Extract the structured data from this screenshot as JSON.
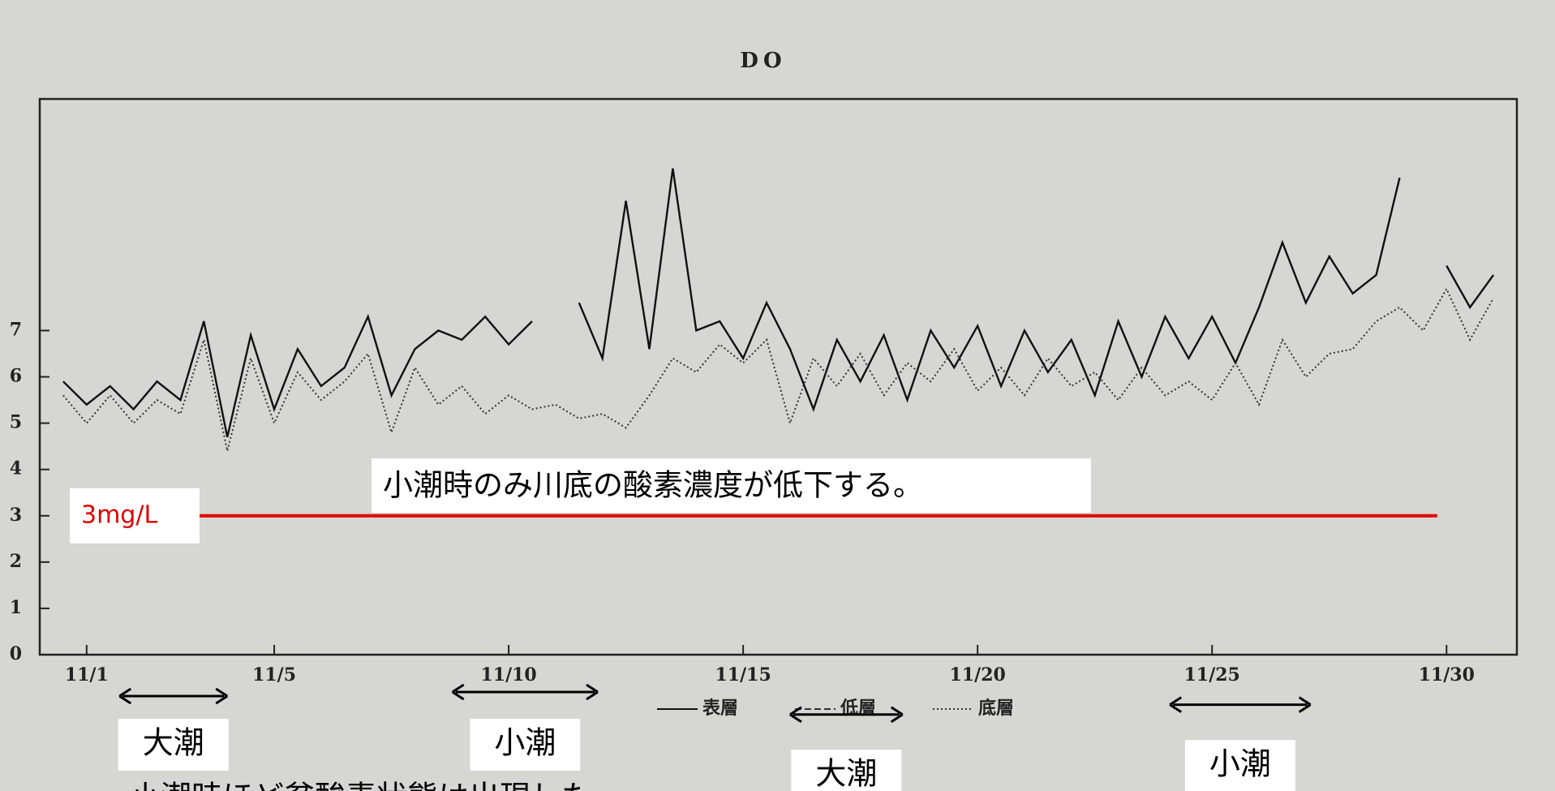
{
  "chart_data": {
    "type": "line",
    "title": "DO",
    "x": [
      0.5,
      1,
      1.5,
      2,
      2.5,
      3,
      3.5,
      4,
      4.5,
      5,
      5.5,
      6,
      6.5,
      7,
      7.5,
      8,
      8.5,
      9,
      9.5,
      10,
      10.5,
      11,
      11.5,
      12,
      12.5,
      13,
      13.5,
      14,
      14.5,
      15,
      15.5,
      16,
      16.5,
      17,
      17.5,
      18,
      18.5,
      19,
      19.5,
      20,
      20.5,
      21,
      21.5,
      22,
      22.5,
      23,
      23.5,
      24,
      24.5,
      25,
      25.5,
      26,
      26.5,
      27,
      27.5,
      28,
      28.5,
      29,
      29.5,
      30,
      30.5,
      31
    ],
    "series": [
      {
        "name": "表層",
        "style": "solid",
        "color": "#111111",
        "values": [
          5.9,
          5.4,
          5.8,
          5.3,
          5.9,
          5.5,
          7.2,
          4.7,
          6.9,
          5.3,
          6.6,
          5.8,
          6.2,
          7.3,
          5.6,
          6.6,
          7.0,
          6.8,
          7.3,
          6.7,
          7.2,
          null,
          7.6,
          6.4,
          9.8,
          6.6,
          10.5,
          7.0,
          7.2,
          6.4,
          7.6,
          6.6,
          5.3,
          6.8,
          5.9,
          6.9,
          5.5,
          7.0,
          6.2,
          7.1,
          5.8,
          7.0,
          6.1,
          6.8,
          5.6,
          7.2,
          6.0,
          7.3,
          6.4,
          7.3,
          6.3,
          7.5,
          8.9,
          7.6,
          8.6,
          7.8,
          8.2,
          10.3,
          null,
          8.4,
          7.5,
          8.2
        ]
      },
      {
        "name": "低層",
        "style": "dashed",
        "color": "#333333",
        "values": [
          null,
          null,
          null,
          null,
          null,
          null,
          null,
          null,
          null,
          null,
          null,
          null,
          null,
          null,
          null,
          null,
          null,
          null,
          null,
          null,
          null,
          null,
          null,
          null,
          null,
          null,
          null,
          null,
          null,
          null,
          null,
          null,
          null,
          null,
          null,
          null,
          null,
          null,
          null,
          null,
          null,
          null,
          null,
          null,
          null,
          null,
          null,
          null,
          null,
          null,
          null,
          null,
          null,
          null,
          null,
          null,
          null,
          null,
          null,
          null,
          null,
          null
        ]
      },
      {
        "name": "底層",
        "style": "dotted",
        "color": "#333333",
        "values": [
          5.6,
          5.0,
          5.6,
          5.0,
          5.5,
          5.2,
          6.8,
          4.4,
          6.4,
          5.0,
          6.1,
          5.5,
          5.9,
          6.5,
          4.8,
          6.2,
          5.4,
          5.8,
          5.2,
          5.6,
          5.3,
          5.4,
          5.1,
          5.2,
          4.9,
          5.6,
          6.4,
          6.1,
          6.7,
          6.3,
          6.8,
          5.0,
          6.4,
          5.8,
          6.5,
          5.6,
          6.3,
          5.9,
          6.6,
          5.7,
          6.2,
          5.6,
          6.4,
          5.8,
          6.1,
          5.5,
          6.2,
          5.6,
          5.9,
          5.5,
          6.3,
          5.4,
          6.8,
          6.0,
          6.5,
          6.6,
          7.2,
          7.5,
          7.0,
          7.9,
          6.8,
          7.7
        ]
      }
    ],
    "xlim": [
      0,
      31.5
    ],
    "xticks": [
      {
        "value": 1,
        "label": "11/1"
      },
      {
        "value": 5,
        "label": "11/5"
      },
      {
        "value": 10,
        "label": "11/10"
      },
      {
        "value": 15,
        "label": "11/15"
      },
      {
        "value": 20,
        "label": "11/20"
      },
      {
        "value": 25,
        "label": "11/25"
      },
      {
        "value": 30,
        "label": "11/30"
      }
    ],
    "ylim": [
      0,
      12
    ],
    "yticks": [
      0,
      1,
      2,
      3,
      4,
      5,
      6,
      7
    ],
    "threshold": {
      "value": 3,
      "label": "3mg/L",
      "start": 3.4,
      "end": 29.8
    },
    "note": "小潮時のみ川底の酸素濃度が低下する。",
    "tides": [
      {
        "label": "大潮",
        "start": 1.7,
        "end": 4.0
      },
      {
        "label": "小潮",
        "start": 8.8,
        "end": 11.9
      },
      {
        "label": "大潮",
        "start": 16.0,
        "end": 18.4
      },
      {
        "label": "小潮",
        "start": 24.1,
        "end": 27.1
      }
    ],
    "caption": "小潮時ほど貧酸素状態は出現した"
  }
}
